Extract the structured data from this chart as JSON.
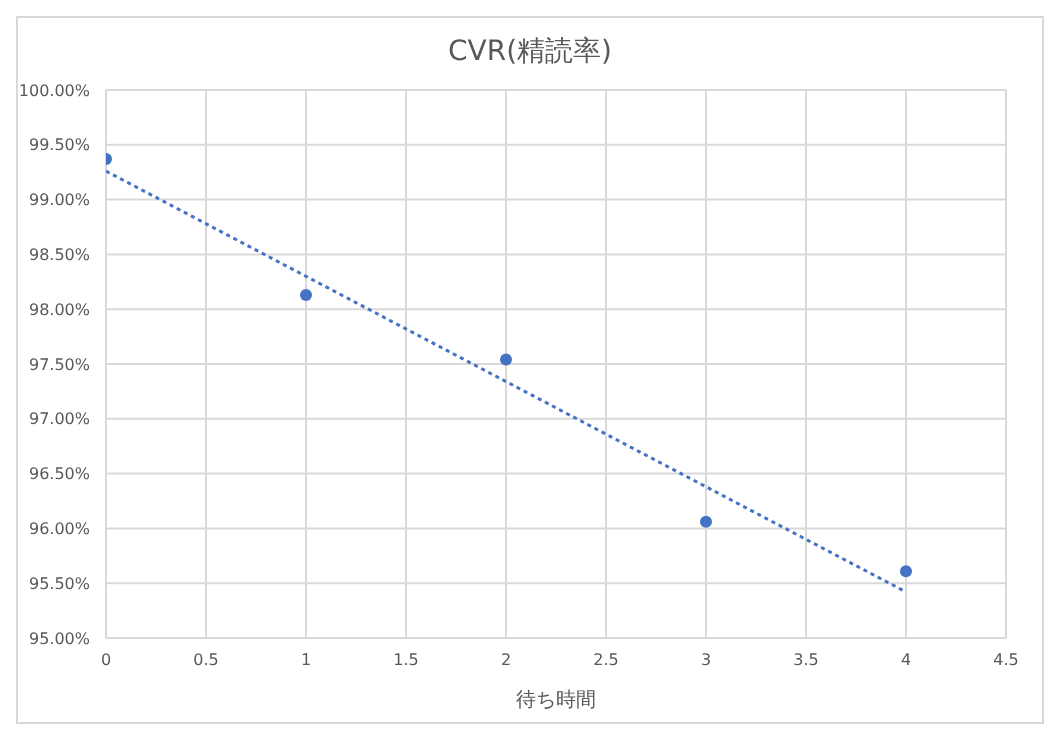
{
  "chart_data": {
    "type": "scatter",
    "title": "CVR(精読率)",
    "xlabel": "待ち時間",
    "x": [
      0,
      1,
      2,
      3,
      4
    ],
    "series": [
      {
        "color": "#4472c4",
        "values": [
          99.37,
          98.13,
          97.54,
          96.06,
          95.61
        ],
        "marker": "circle"
      },
      {
        "type": "line",
        "color": "#4472c4",
        "x": [
          0,
          4
        ],
        "values": [
          99.26,
          95.42
        ],
        "line_style": "dotted",
        "marker": "none"
      }
    ],
    "xlim": [
      0,
      4.5
    ],
    "xticks": [
      0,
      0.5,
      1,
      1.5,
      2,
      2.5,
      3,
      3.5,
      4,
      4.5
    ],
    "ylim": [
      95,
      100
    ],
    "yticks": [
      {
        "value": 95,
        "label": "95.00%"
      },
      {
        "value": 95.5,
        "label": "95.50%"
      },
      {
        "value": 96,
        "label": "96.00%"
      },
      {
        "value": 96.5,
        "label": "96.50%"
      },
      {
        "value": 97,
        "label": "97.00%"
      },
      {
        "value": 97.5,
        "label": "97.50%"
      },
      {
        "value": 98,
        "label": "98.00%"
      },
      {
        "value": 98.5,
        "label": "98.50%"
      },
      {
        "value": 99,
        "label": "99.00%"
      },
      {
        "value": 99.5,
        "label": "99.50%"
      },
      {
        "value": 100,
        "label": "100.00%"
      }
    ],
    "grid": true
  }
}
